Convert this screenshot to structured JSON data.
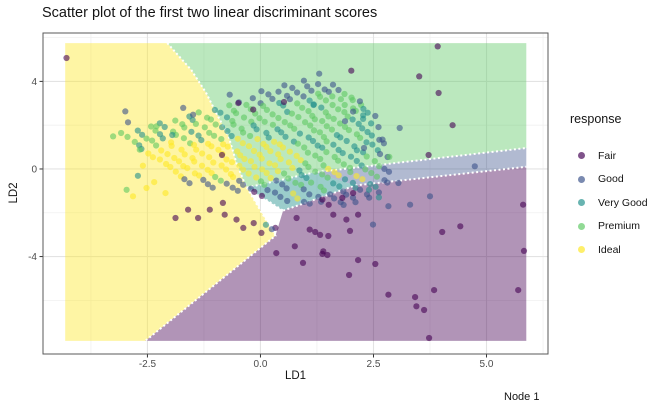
{
  "title": "Scatter plot of the first two linear discriminant scores",
  "footer": {
    "node_label": "Node 1"
  },
  "axes": {
    "x": {
      "label": "LD1",
      "range": [
        -4.81,
        6.36
      ],
      "ticks": [
        {
          "v": -2.5,
          "label": "-2.5"
        },
        {
          "v": 0,
          "label": "0.0"
        },
        {
          "v": 2.5,
          "label": "2.5"
        },
        {
          "v": 5,
          "label": "5.0"
        }
      ],
      "minor": [
        -3.75,
        -1.25,
        1.25,
        3.75,
        6.25
      ]
    },
    "y": {
      "label": "LD2",
      "range": [
        -8.45,
        6.21
      ],
      "ticks": [
        {
          "v": 4,
          "label": "4"
        },
        {
          "v": 0,
          "label": "0"
        },
        {
          "v": -4,
          "label": "-4"
        }
      ],
      "minor": [
        6,
        2,
        -2,
        -6
      ]
    }
  },
  "legend": {
    "title": "response",
    "items": [
      {
        "key": "fair",
        "label": "Fair"
      },
      {
        "key": "good",
        "label": "Good"
      },
      {
        "key": "verygood",
        "label": "Very Good"
      },
      {
        "key": "premium",
        "label": "Premium"
      },
      {
        "key": "ideal",
        "label": "Ideal"
      }
    ]
  },
  "chart_data": {
    "type": "scatter",
    "title": "Scatter plot of the first two linear discriminant scores",
    "xlabel": "LD1",
    "ylabel": "LD2",
    "xlim": [
      -4.81,
      6.36
    ],
    "ylim": [
      -8.45,
      6.21
    ],
    "grid": true,
    "legend_position": "right",
    "classes": {
      "fair": {
        "label": "Fair",
        "color": "#440154",
        "region_opacity": 0.42
      },
      "good": {
        "label": "Good",
        "color": "#3B528B",
        "region_opacity": 0.4
      },
      "verygood": {
        "label": "Very Good",
        "color": "#21908C",
        "region_opacity": 0.45
      },
      "premium": {
        "label": "Premium",
        "color": "#5DC863",
        "region_opacity": 0.42
      },
      "ideal": {
        "label": "Ideal",
        "color": "#FDE725",
        "region_opacity": 0.42
      }
    },
    "region_extent": {
      "x": [
        -4.32,
        5.88
      ],
      "y": [
        -7.85,
        5.75
      ]
    },
    "regions": [
      {
        "class": "ideal",
        "polygon": [
          [
            -4.32,
            5.75
          ],
          [
            -2.06,
            5.75
          ],
          [
            -1.53,
            4.52
          ],
          [
            -1.2,
            3.47
          ],
          [
            -0.98,
            2.56
          ],
          [
            -0.71,
            1.51
          ],
          [
            -0.53,
            0.27
          ],
          [
            -0.38,
            -0.5
          ],
          [
            -0.3,
            -0.85
          ],
          [
            0.33,
            -3.05
          ],
          [
            -2.55,
            -7.85
          ],
          [
            -4.32,
            -7.85
          ]
        ]
      },
      {
        "class": "premium",
        "polygon": [
          [
            -2.06,
            5.75
          ],
          [
            5.88,
            5.75
          ],
          [
            5.88,
            0.96
          ],
          [
            1.2,
            -0.15
          ],
          [
            -0.3,
            -0.85
          ],
          [
            -0.38,
            -0.5
          ],
          [
            -0.53,
            0.27
          ],
          [
            -0.71,
            1.51
          ],
          [
            -0.98,
            2.56
          ],
          [
            -1.2,
            3.47
          ],
          [
            -1.53,
            4.52
          ]
        ]
      },
      {
        "class": "verygood",
        "polygon": [
          [
            -0.3,
            -0.85
          ],
          [
            1.2,
            -0.15
          ],
          [
            2.1,
            -0.75
          ],
          [
            0.5,
            -1.9
          ]
        ]
      },
      {
        "class": "good",
        "polygon": [
          [
            1.2,
            -0.15
          ],
          [
            5.88,
            0.96
          ],
          [
            5.88,
            0.1
          ],
          [
            2.1,
            -0.75
          ]
        ]
      },
      {
        "class": "fair",
        "polygon": [
          [
            0.5,
            -1.9
          ],
          [
            2.1,
            -0.75
          ],
          [
            5.88,
            0.1
          ],
          [
            5.88,
            -7.85
          ],
          [
            -2.55,
            -7.85
          ],
          [
            0.33,
            -3.05
          ]
        ]
      }
    ],
    "boundaries": [
      [
        [
          -2.06,
          5.75
        ],
        [
          -1.53,
          4.52
        ],
        [
          -1.2,
          3.47
        ],
        [
          -0.98,
          2.56
        ],
        [
          -0.71,
          1.51
        ],
        [
          -0.53,
          0.27
        ],
        [
          -0.38,
          -0.5
        ],
        [
          -0.3,
          -0.85
        ]
      ],
      [
        [
          -0.3,
          -0.85
        ],
        [
          0.33,
          -3.05
        ],
        [
          -2.55,
          -7.85
        ]
      ],
      [
        [
          -0.3,
          -0.85
        ],
        [
          1.2,
          -0.15
        ],
        [
          5.88,
          0.96
        ]
      ],
      [
        [
          0.5,
          -1.9
        ],
        [
          2.1,
          -0.75
        ],
        [
          5.88,
          0.1
        ]
      ],
      [
        [
          -0.3,
          -0.85
        ],
        [
          0.5,
          -1.9
        ]
      ]
    ],
    "stripes": {
      "dir": [
        0.1155,
        -0.1754
      ],
      "jitter_perp": 0.055,
      "jitter_along": 0.5,
      "list": [
        {
          "x": -3.05,
          "y": 1.6,
          "seq": [
            [
              "premium",
              3
            ],
            [
              "verygood",
              2
            ],
            [
              "ideal",
              7
            ],
            [
              "good",
              2
            ]
          ]
        },
        {
          "x": -2.76,
          "y": 1.76,
          "seq": [
            [
              "verygood",
              2
            ],
            [
              "premium",
              3
            ],
            [
              "ideal",
              8
            ],
            [
              "good",
              3
            ]
          ]
        },
        {
          "x": -2.47,
          "y": 1.92,
          "seq": [
            [
              "premium",
              2
            ],
            [
              "verygood",
              2
            ],
            [
              "ideal",
              9
            ],
            [
              "premium",
              2
            ],
            [
              "good",
              3
            ]
          ]
        },
        {
          "x": -2.18,
          "y": 2.08,
          "seq": [
            [
              "verygood",
              2
            ],
            [
              "premium",
              4
            ],
            [
              "ideal",
              9
            ],
            [
              "good",
              3
            ],
            [
              "fair",
              2
            ]
          ]
        },
        {
          "x": -1.89,
          "y": 2.24,
          "seq": [
            [
              "premium",
              3
            ],
            [
              "verygood",
              3
            ],
            [
              "ideal",
              10
            ],
            [
              "premium",
              2
            ],
            [
              "good",
              4
            ]
          ]
        },
        {
          "x": -1.6,
          "y": 2.4,
          "seq": [
            [
              "verygood",
              2
            ],
            [
              "premium",
              5
            ],
            [
              "ideal",
              10
            ],
            [
              "good",
              3
            ],
            [
              "ideal",
              2
            ],
            [
              "good",
              2
            ]
          ]
        },
        {
          "x": -1.31,
          "y": 2.56,
          "seq": [
            [
              "premium",
              4
            ],
            [
              "verygood",
              3
            ],
            [
              "ideal",
              9
            ],
            [
              "premium",
              4
            ],
            [
              "good",
              4
            ],
            [
              "fair",
              1
            ]
          ]
        },
        {
          "x": -1.02,
          "y": 2.72,
          "seq": [
            [
              "verygood",
              3
            ],
            [
              "premium",
              5
            ],
            [
              "ideal",
              8
            ],
            [
              "verygood",
              3
            ],
            [
              "premium",
              3
            ],
            [
              "good",
              4
            ]
          ]
        },
        {
          "x": -0.73,
          "y": 2.88,
          "seq": [
            [
              "premium",
              5
            ],
            [
              "verygood",
              4
            ],
            [
              "ideal",
              6
            ],
            [
              "premium",
              5
            ],
            [
              "verygood",
              2
            ],
            [
              "good",
              4
            ]
          ]
        },
        {
          "x": -0.44,
          "y": 3.04,
          "seq": [
            [
              "good",
              1
            ],
            [
              "premium",
              6
            ],
            [
              "verygood",
              4
            ],
            [
              "premium",
              6
            ],
            [
              "ideal",
              3
            ],
            [
              "verygood",
              3
            ],
            [
              "good",
              3
            ]
          ]
        },
        {
          "x": -0.15,
          "y": 3.2,
          "seq": [
            [
              "good",
              2
            ],
            [
              "premium",
              7
            ],
            [
              "verygood",
              5
            ],
            [
              "premium",
              6
            ],
            [
              "ideal",
              2
            ],
            [
              "verygood",
              2
            ],
            [
              "good",
              1
            ]
          ]
        },
        {
          "x": 0.14,
          "y": 3.36,
          "seq": [
            [
              "good",
              2
            ],
            [
              "verygood",
              3
            ],
            [
              "premium",
              8
            ],
            [
              "verygood",
              6
            ],
            [
              "premium",
              3
            ],
            [
              "good",
              2
            ]
          ]
        },
        {
          "x": 0.43,
          "y": 3.52,
          "seq": [
            [
              "good",
              3
            ],
            [
              "premium",
              8
            ],
            [
              "verygood",
              6
            ],
            [
              "premium",
              3
            ],
            [
              "good",
              2
            ]
          ]
        },
        {
          "x": 0.72,
          "y": 3.68,
          "seq": [
            [
              "good",
              3
            ],
            [
              "verygood",
              3
            ],
            [
              "premium",
              8
            ],
            [
              "verygood",
              3
            ],
            [
              "good",
              2
            ]
          ]
        },
        {
          "x": 1.01,
          "y": 3.8,
          "seq": [
            [
              "good",
              2
            ],
            [
              "premium",
              7
            ],
            [
              "verygood",
              5
            ],
            [
              "good",
              2
            ]
          ]
        },
        {
          "x": 1.3,
          "y": 3.85,
          "seq": [
            [
              "good",
              3
            ],
            [
              "premium",
              5
            ],
            [
              "verygood",
              3
            ],
            [
              "good",
              1
            ]
          ]
        },
        {
          "x": 1.6,
          "y": 3.8,
          "seq": [
            [
              "good",
              2
            ],
            [
              "premium",
              4
            ],
            [
              "verygood",
              2
            ],
            [
              "good",
              1
            ]
          ]
        }
      ]
    },
    "points": [
      [
        -4.29,
        5.07,
        "fair"
      ],
      [
        3.92,
        5.6,
        "fair"
      ],
      [
        2.01,
        4.49,
        "fair"
      ],
      [
        3.51,
        4.23,
        "fair"
      ],
      [
        3.94,
        3.47,
        "fair"
      ],
      [
        4.25,
        2.0,
        "fair"
      ],
      [
        3.72,
        0.64,
        "fair"
      ],
      [
        0.52,
        3.06,
        "fair"
      ],
      [
        -0.49,
        3.01,
        "fair"
      ],
      [
        -0.16,
        2.71,
        "fair"
      ],
      [
        -0.85,
        0.64,
        "fair"
      ],
      [
        1.21,
        -2.88,
        "fair"
      ],
      [
        1.32,
        -3.01,
        "fair"
      ],
      [
        1.5,
        -3.06,
        "fair"
      ],
      [
        1.98,
        -2.83,
        "fair"
      ],
      [
        4.02,
        -2.88,
        "fair"
      ],
      [
        1.37,
        -3.88,
        "fair"
      ],
      [
        1.48,
        -3.93,
        "fair"
      ],
      [
        2.16,
        -4.16,
        "fair"
      ],
      [
        0.94,
        -4.29,
        "fair"
      ],
      [
        2.54,
        -4.34,
        "fair"
      ],
      [
        1.96,
        -4.84,
        "fair"
      ],
      [
        3.84,
        -5.53,
        "fair"
      ],
      [
        3.42,
        -5.85,
        "fair"
      ],
      [
        3.62,
        -6.44,
        "fair"
      ],
      [
        3.73,
        -7.72,
        "fair"
      ],
      [
        5.83,
        -3.74,
        "fair"
      ],
      [
        5.7,
        -5.53,
        "fair"
      ],
      [
        5.81,
        -1.63,
        "fair"
      ],
      [
        4.42,
        -2.62,
        "fair"
      ],
      [
        2.83,
        -5.74,
        "fair"
      ],
      [
        3.45,
        -6.27,
        "fair"
      ],
      [
        0.8,
        -2.24,
        "fair"
      ],
      [
        1.09,
        -2.77,
        "fair"
      ],
      [
        0.33,
        -2.69,
        "fair"
      ],
      [
        0.02,
        -2.92,
        "fair"
      ],
      [
        -0.15,
        -2.47,
        "fair"
      ],
      [
        -0.38,
        -2.69,
        "fair"
      ],
      [
        -0.53,
        -2.31,
        "fair"
      ],
      [
        -0.79,
        -2.09,
        "fair"
      ],
      [
        -1.12,
        -1.86,
        "fair"
      ],
      [
        -1.38,
        -2.24,
        "fair"
      ],
      [
        -1.6,
        -1.86,
        "fair"
      ],
      [
        -1.88,
        -2.24,
        "fair"
      ],
      [
        -0.83,
        -1.55,
        "fair"
      ],
      [
        0.76,
        -3.53,
        "fair"
      ],
      [
        1.39,
        -3.76,
        "fair"
      ],
      [
        0.35,
        -3.84,
        "fair"
      ],
      [
        1.61,
        -2.09,
        "fair"
      ],
      [
        1.9,
        -2.31,
        "fair"
      ],
      [
        2.16,
        -2.09,
        "fair"
      ],
      [
        1.37,
        -1.4,
        "fair"
      ],
      [
        1.81,
        -1.32,
        "fair"
      ],
      [
        2.05,
        -1.1,
        "fair"
      ],
      [
        4.74,
        0.12,
        "good"
      ],
      [
        3.75,
        -1.25,
        "good"
      ],
      [
        3.31,
        -1.63,
        "good"
      ],
      [
        2.49,
        -2.54,
        "good"
      ],
      [
        2.83,
        -1.7,
        "good"
      ],
      [
        3.05,
        -0.64,
        "good"
      ],
      [
        2.29,
        0.96,
        "good"
      ],
      [
        2.7,
        1.34,
        "good"
      ],
      [
        3.08,
        1.87,
        "good"
      ],
      [
        2.2,
        3.09,
        "good"
      ],
      [
        1.87,
        2.18,
        "good"
      ],
      [
        0.53,
        3.82,
        "good"
      ],
      [
        0.02,
        3.55,
        "good"
      ],
      [
        0.96,
        4.03,
        "good"
      ],
      [
        -0.68,
        3.39,
        "good"
      ],
      [
        -2.99,
        2.63,
        "good"
      ],
      [
        -2.93,
        2.13,
        "good"
      ],
      [
        -1.71,
        2.79,
        "good"
      ],
      [
        -1.49,
        2.48,
        "good"
      ],
      [
        0.25,
        -2.75,
        "good"
      ],
      [
        2.05,
        2.62,
        "good"
      ],
      [
        1.3,
        4.35,
        "good"
      ],
      [
        -2.71,
        -0.31,
        "verygood"
      ],
      [
        0.12,
        -2.55,
        "verygood"
      ],
      [
        2.4,
        -0.95,
        "verygood"
      ],
      [
        2.62,
        -1.3,
        "verygood"
      ],
      [
        1.18,
        2.95,
        "verygood"
      ],
      [
        -1.95,
        1.55,
        "verygood"
      ],
      [
        -3.26,
        1.49,
        "premium"
      ],
      [
        -2.67,
        0.88,
        "premium"
      ],
      [
        -2.96,
        -0.95,
        "premium"
      ],
      [
        -2.3,
        1.95,
        "premium"
      ],
      [
        2.85,
        0.55,
        "premium"
      ],
      [
        -2.82,
        -1.25,
        "ideal"
      ],
      [
        -2.52,
        -0.87,
        "ideal"
      ],
      [
        -2.35,
        -0.6,
        "ideal"
      ],
      [
        -2.1,
        -1.1,
        "ideal"
      ],
      [
        -2.6,
        0.15,
        "ideal"
      ]
    ]
  },
  "style": {
    "panel_border": "#595959",
    "grid_major": "#e3e3e3",
    "grid_minor": "#f0f0f0",
    "tick_color": "#333333",
    "tick_label_color": "#4d4d4d",
    "point_radius": 3.1,
    "point_opacity": 0.6
  }
}
